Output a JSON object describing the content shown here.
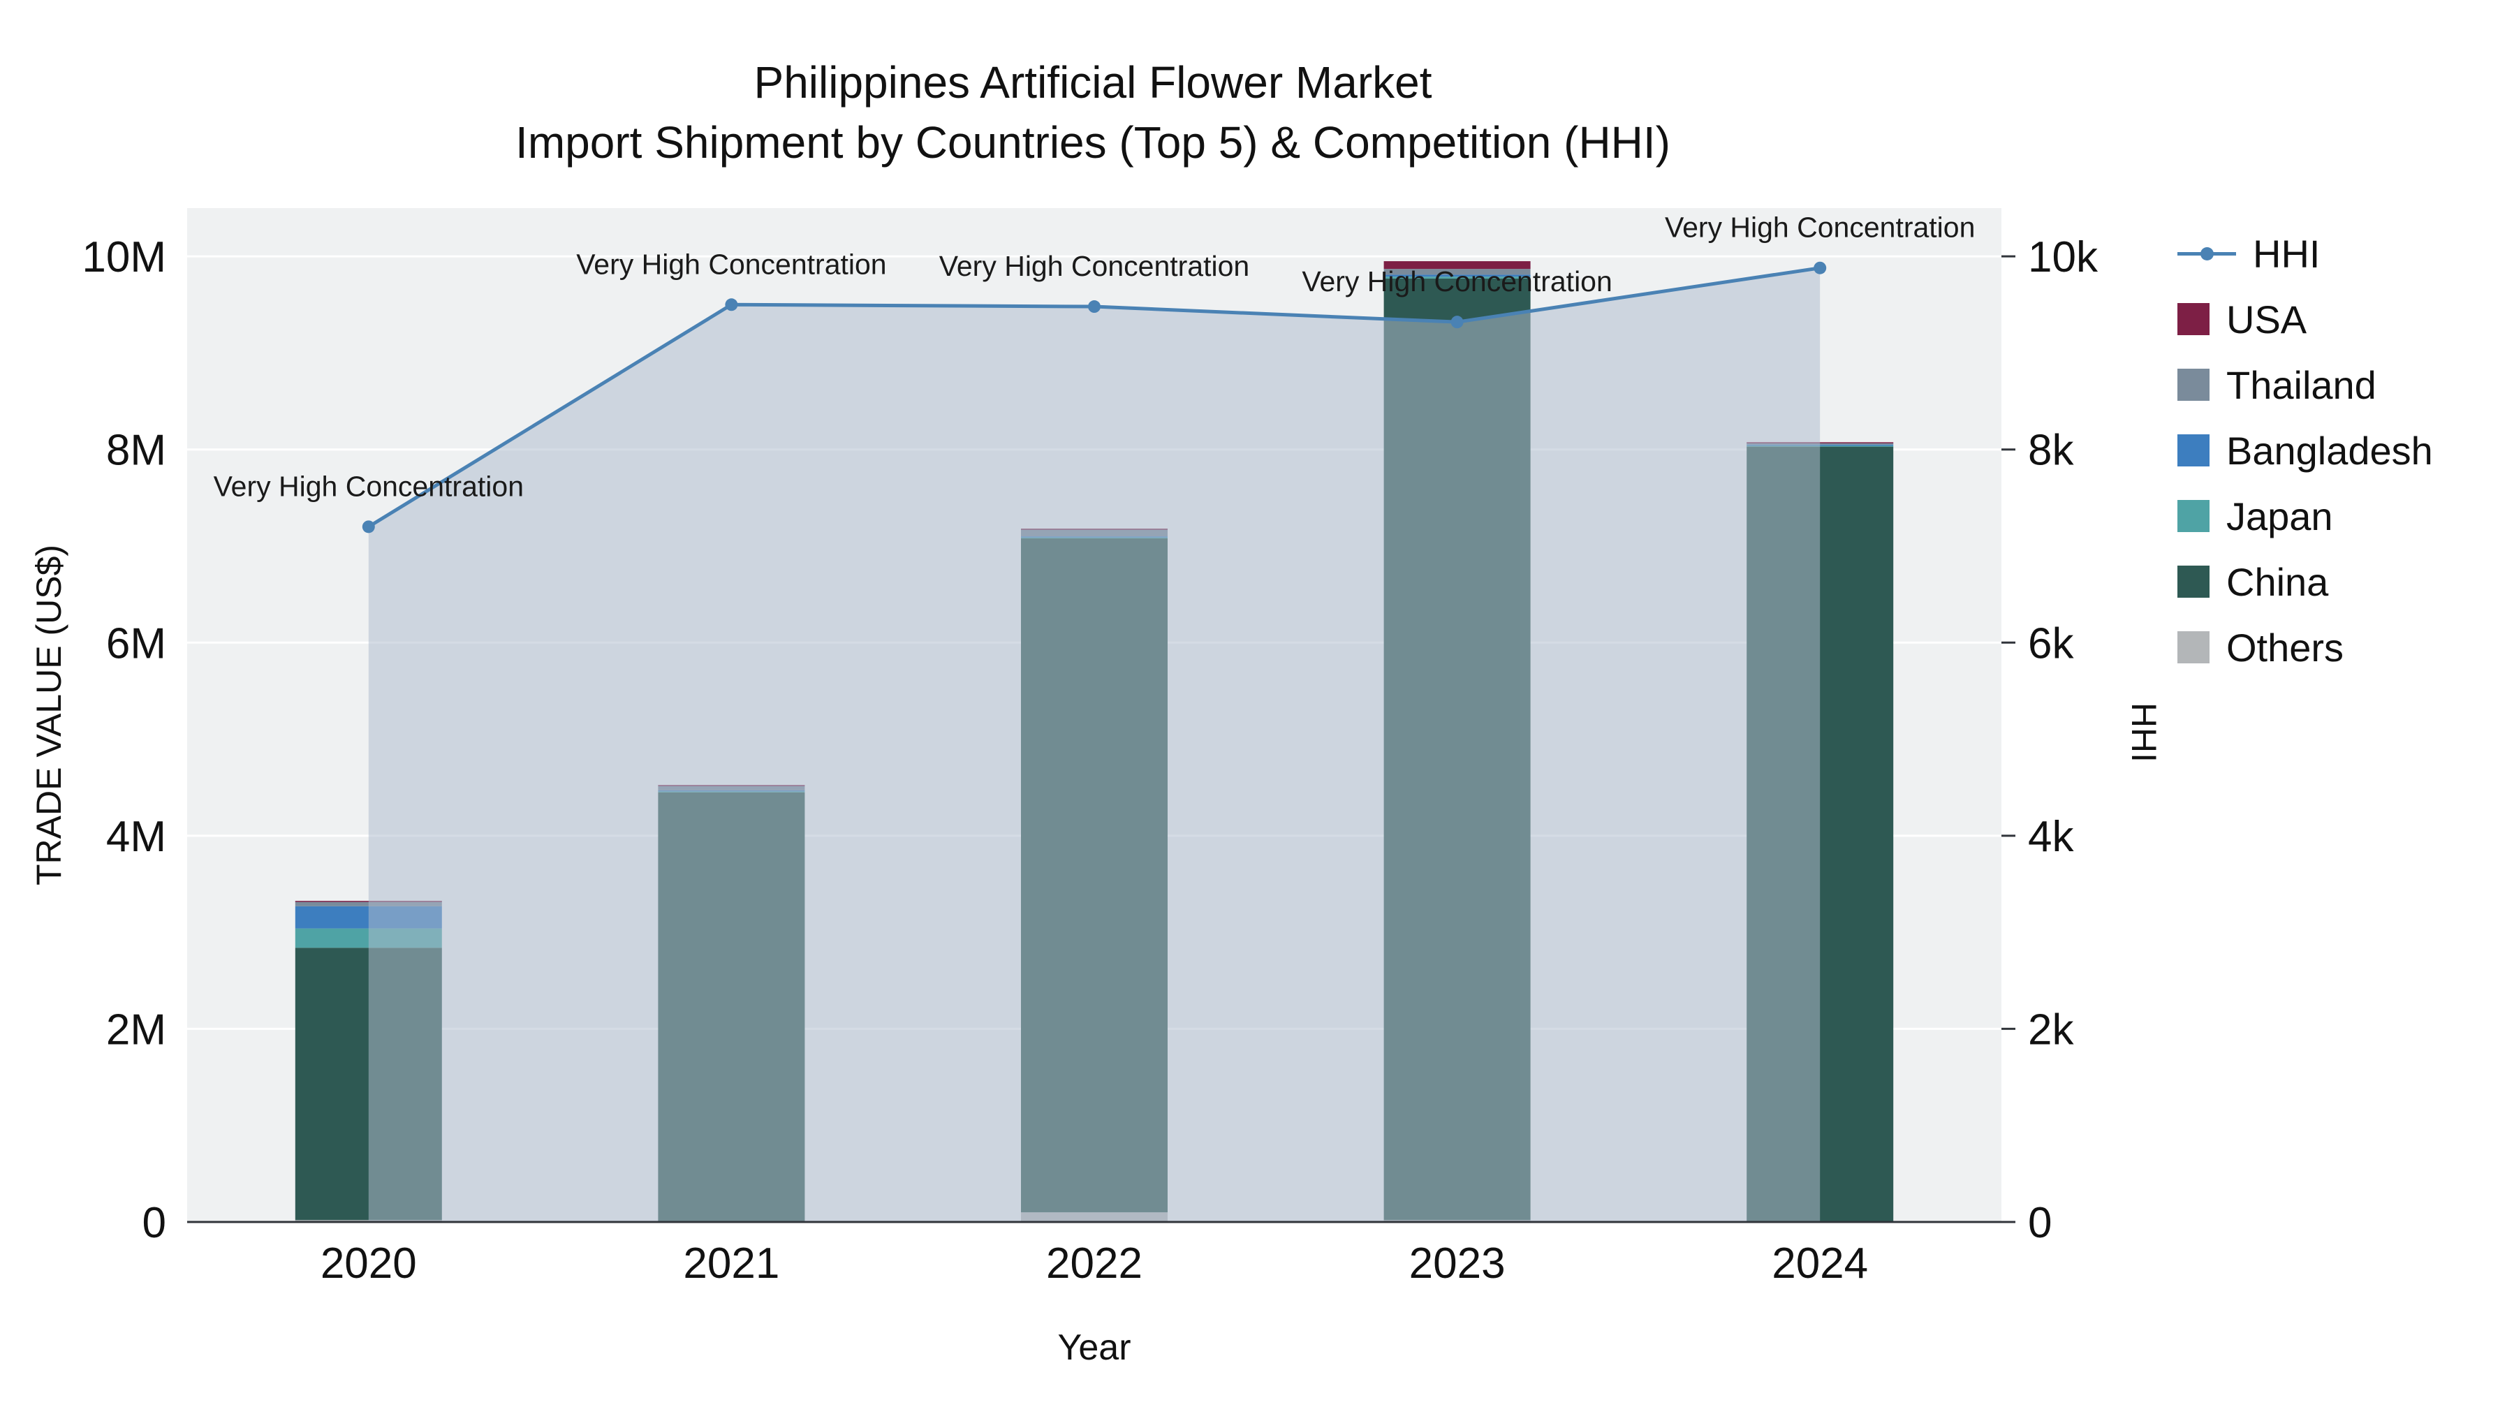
{
  "title": {
    "line1": "Philippines Artificial Flower Market",
    "line2": "Import Shipment by Countries (Top 5) & Competition (HHI)"
  },
  "chart_data": {
    "type": "bar",
    "subtype": "stacked-bars-with-line-area-overlay",
    "x": [
      "2020",
      "2021",
      "2022",
      "2023",
      "2024"
    ],
    "xlabel": "Year",
    "ylabel_left": "TRADE VALUE (US$)",
    "ylabel_right": "HHI",
    "plot_bg": "#EFF1F2",
    "grid_color": "#ffffff",
    "left_axis": {
      "ticks": [
        0,
        2,
        4,
        6,
        8,
        10
      ],
      "tick_labels": [
        "0",
        "2M",
        "4M",
        "6M",
        "8M",
        "10M"
      ],
      "max": 10.5,
      "unit": "millions US$"
    },
    "right_axis": {
      "ticks": [
        0,
        2,
        4,
        6,
        8,
        10
      ],
      "tick_labels": [
        "0",
        "2k",
        "4k",
        "6k",
        "8k",
        "10k"
      ],
      "max": 10.5,
      "unit": "HHI (thousands)"
    },
    "bar_series": [
      {
        "name": "Others",
        "color": "#B3B6B8",
        "values": [
          0.02,
          0.01,
          0.1,
          0.02,
          0.01
        ]
      },
      {
        "name": "China",
        "color": "#2E5953",
        "values": [
          2.82,
          4.44,
          6.98,
          9.75,
          8.02
        ]
      },
      {
        "name": "Japan",
        "color": "#4FA3A5",
        "values": [
          0.2,
          0.01,
          0.01,
          0.02,
          0.01
        ]
      },
      {
        "name": "Bangladesh",
        "color": "#3D7EBF",
        "values": [
          0.23,
          0.01,
          0.01,
          0.02,
          0.01
        ]
      },
      {
        "name": "Thailand",
        "color": "#7A8B9B",
        "values": [
          0.05,
          0.05,
          0.07,
          0.06,
          0.02
        ]
      },
      {
        "name": "USA",
        "color": "#7D1F45",
        "values": [
          0.005,
          0.005,
          0.01,
          0.08,
          0.005
        ]
      }
    ],
    "line_series": {
      "name": "HHI",
      "color": "#4A82B4",
      "fill_color": "rgba(174,188,205,0.52)",
      "values": [
        7200,
        9500,
        9480,
        9320,
        9880
      ],
      "annotations": [
        "Very High Concentration",
        "Very High Concentration",
        "Very High Concentration",
        "Very High Concentration",
        "Very High Concentration"
      ]
    },
    "legend": [
      "HHI",
      "USA",
      "Thailand",
      "Bangladesh",
      "Japan",
      "China",
      "Others"
    ],
    "legend_position": "right"
  }
}
